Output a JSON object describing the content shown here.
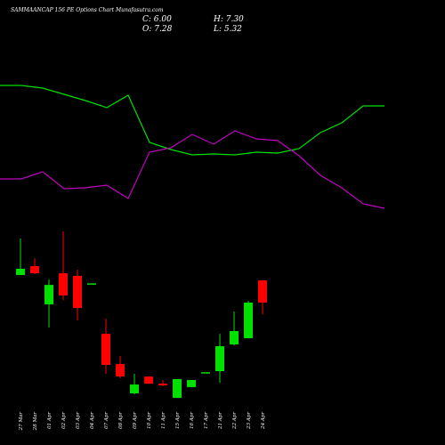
{
  "chart_data": [
    {
      "type": "line",
      "x": [
        0,
        1,
        2,
        3,
        4,
        5,
        6,
        7,
        8,
        9,
        10,
        11,
        12,
        13,
        14,
        15,
        16,
        17,
        18
      ],
      "ylim": [
        0,
        160
      ],
      "series": [
        {
          "color": "#00e000",
          "values": [
            154,
            154,
            151,
            144,
            137,
            129,
            143,
            90,
            82,
            76,
            77,
            76,
            79,
            78,
            83,
            101,
            112,
            131,
            131
          ]
        },
        {
          "color": "#c000c0",
          "values": [
            49,
            49,
            57,
            38,
            39,
            42,
            27,
            79,
            84,
            99,
            88,
            103,
            94,
            92,
            75,
            53,
            39,
            21,
            16
          ]
        }
      ]
    },
    {
      "type": "candlestick",
      "title": "SAMMAANCAP 156 PE Options Chart Munafasutra.com",
      "stats": [
        "C: 6.00",
        "H: 7.30",
        "O: 7.28",
        "L: 5.32"
      ],
      "categories": [
        "27 Mar",
        "28 Mar",
        "01 Apr",
        "02 Apr",
        "03 Apr",
        "04 Apr",
        "07 Apr",
        "08 Apr",
        "09 Apr",
        "10 Apr",
        "11 Apr",
        "15 Apr",
        "16 Apr",
        "17 Apr",
        "21 Apr",
        "22 Apr",
        "23 Apr",
        "24 Apr"
      ],
      "ylim": [
        0,
        12
      ],
      "up_color": "#00e000",
      "down_color": "#ff0000",
      "open": [
        7.59,
        8.1,
        5.9,
        7.69,
        7.54,
        7.07,
        4.2,
        2.46,
        0.77,
        1.74,
        1.33,
        0.51,
        1.13,
        1.95,
        2.05,
        3.59,
        3.95,
        7.28
      ],
      "high": [
        9.69,
        8.56,
        7.33,
        10.1,
        7.9,
        7.07,
        5.07,
        2.92,
        1.9,
        1.74,
        1.54,
        1.59,
        1.54,
        1.95,
        4.2,
        5.49,
        6.1,
        7.3
      ],
      "low": [
        7.59,
        7.64,
        4.56,
        6.15,
        4.97,
        7.07,
        1.9,
        1.64,
        0.72,
        1.33,
        1.18,
        0.51,
        1.13,
        1.95,
        1.38,
        3.54,
        3.95,
        5.32
      ],
      "close": [
        7.95,
        7.69,
        7.02,
        6.41,
        5.69,
        7.07,
        2.41,
        1.74,
        1.28,
        1.33,
        1.23,
        1.59,
        1.54,
        1.95,
        3.49,
        4.36,
        6.0,
        6.0
      ]
    }
  ]
}
